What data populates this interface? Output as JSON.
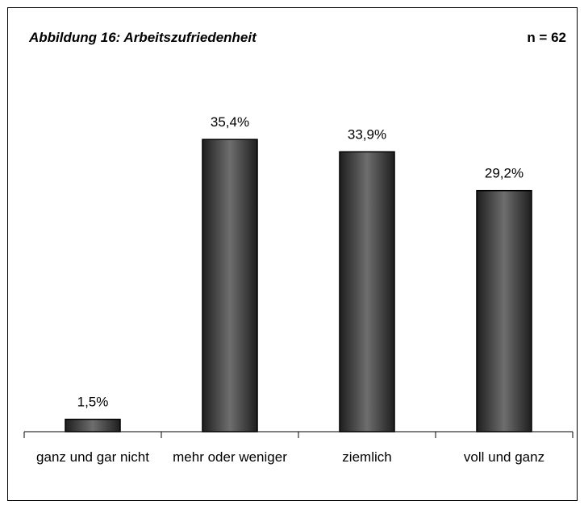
{
  "chart_data": {
    "type": "bar",
    "title": "Abbildung 16: Arbeitszufriedenheit",
    "annotation": "n = 62",
    "categories": [
      "ganz und gar nicht",
      "mehr oder weniger",
      "ziemlich",
      "voll und ganz"
    ],
    "values": [
      1.5,
      35.4,
      33.9,
      29.2
    ],
    "value_labels": [
      "1,5%",
      "35,4%",
      "33,9%",
      "29,2%"
    ],
    "color": "#333333",
    "ylim": [
      0,
      40
    ]
  }
}
